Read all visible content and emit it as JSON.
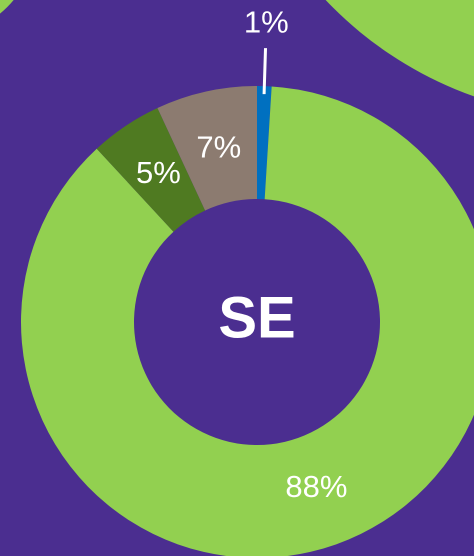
{
  "chart_data": {
    "type": "donut",
    "center_label": "SE",
    "values": [
      1,
      88,
      5,
      7
    ],
    "value_labels": [
      "1%",
      "88%",
      "5%",
      "7%"
    ],
    "colors": [
      "#0070c0",
      "#92d050",
      "#4f7a21",
      "#8c7b70"
    ]
  }
}
